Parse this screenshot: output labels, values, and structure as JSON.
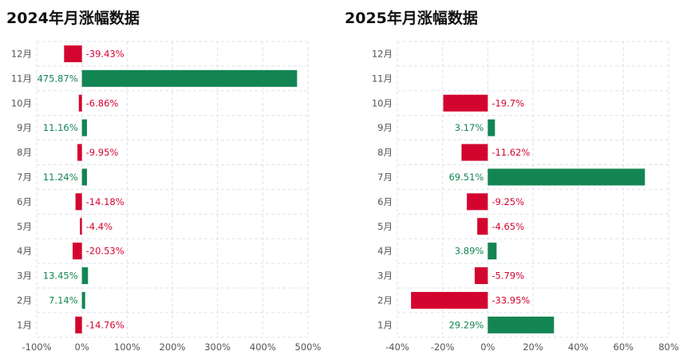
{
  "colors": {
    "positive": "#138553",
    "negative": "#D3052F",
    "grid": "#dde2ea",
    "tick_text": "#555555",
    "title_text": "#111111"
  },
  "chart_data": [
    {
      "type": "bar",
      "orientation": "horizontal",
      "title": "2024年月涨幅数据",
      "categories": [
        "1月",
        "2月",
        "3月",
        "4月",
        "5月",
        "6月",
        "7月",
        "8月",
        "9月",
        "10月",
        "11月",
        "12月"
      ],
      "values": [
        -14.76,
        7.14,
        13.45,
        -20.53,
        -4.4,
        -14.18,
        11.24,
        -9.95,
        11.16,
        -6.86,
        475.87,
        -39.43
      ],
      "labels": [
        "-14.76%",
        "7.14%",
        "13.45%",
        "-20.53%",
        "-4.4%",
        "-14.18%",
        "11.24%",
        "-9.95%",
        "11.16%",
        "-6.86%",
        "475.87%",
        "-39.43%"
      ],
      "xlim": [
        -100,
        500
      ],
      "x_ticks": [
        -100,
        0,
        100,
        200,
        300,
        400,
        500
      ],
      "x_tick_labels": [
        "-100%",
        "0%",
        "100%",
        "200%",
        "300%",
        "400%",
        "500%"
      ],
      "grid": true,
      "legend": "none"
    },
    {
      "type": "bar",
      "orientation": "horizontal",
      "title": "2025年月涨幅数据",
      "categories": [
        "1月",
        "2月",
        "3月",
        "4月",
        "5月",
        "6月",
        "7月",
        "8月",
        "9月",
        "10月",
        "11月",
        "12月"
      ],
      "values": [
        29.29,
        -33.95,
        -5.79,
        3.89,
        -4.65,
        -9.25,
        69.51,
        -11.62,
        3.17,
        -19.7,
        null,
        null
      ],
      "labels": [
        "29.29%",
        "-33.95%",
        "-5.79%",
        "3.89%",
        "-4.65%",
        "-9.25%",
        "69.51%",
        "-11.62%",
        "3.17%",
        "-19.7%",
        "",
        ""
      ],
      "xlim": [
        -40,
        80
      ],
      "x_ticks": [
        -40,
        -20,
        0,
        20,
        40,
        60,
        80
      ],
      "x_tick_labels": [
        "-40%",
        "-20%",
        "0%",
        "20%",
        "40%",
        "60%",
        "80%"
      ],
      "grid": true,
      "legend": "none"
    }
  ]
}
